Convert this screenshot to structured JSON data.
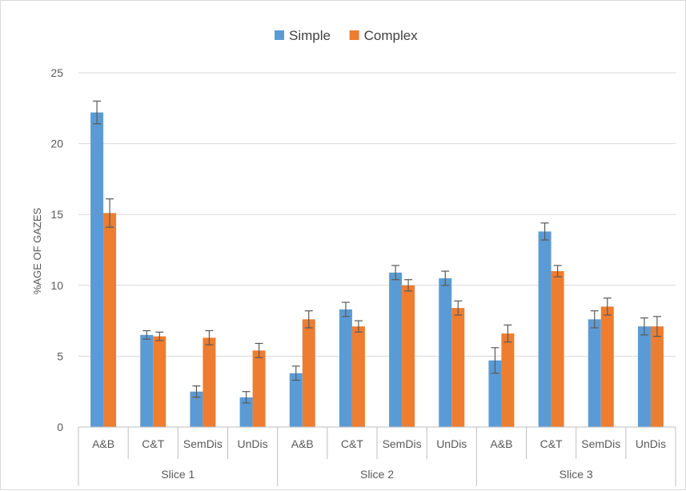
{
  "chart_data": {
    "type": "bar",
    "title": "",
    "ylabel": "%AGE OF GAZES",
    "xlabel": "",
    "ylim": [
      0,
      25
    ],
    "yticks": [
      0,
      5,
      10,
      15,
      20,
      25
    ],
    "grid": true,
    "legend_position": "top",
    "colors": {
      "Simple": "#5b9bd5",
      "Complex": "#ed7d31",
      "error_bar": "#595959"
    },
    "groups": [
      {
        "label": "Slice 1",
        "categories": [
          "A&B",
          "C&T",
          "SemDis",
          "UnDis"
        ]
      },
      {
        "label": "Slice 2",
        "categories": [
          "A&B",
          "C&T",
          "SemDis",
          "UnDis"
        ]
      },
      {
        "label": "Slice 3",
        "categories": [
          "A&B",
          "C&T",
          "SemDis",
          "UnDis"
        ]
      }
    ],
    "series": [
      {
        "name": "Simple",
        "values": [
          22.2,
          6.5,
          2.5,
          2.1,
          3.8,
          8.3,
          10.9,
          10.5,
          4.7,
          13.8,
          7.6,
          7.1
        ],
        "errors": [
          0.8,
          0.3,
          0.4,
          0.4,
          0.5,
          0.5,
          0.5,
          0.5,
          0.9,
          0.6,
          0.6,
          0.6
        ]
      },
      {
        "name": "Complex",
        "values": [
          15.1,
          6.4,
          6.3,
          5.4,
          7.6,
          7.1,
          10.0,
          8.4,
          6.6,
          11.0,
          8.5,
          7.1
        ],
        "errors": [
          1.0,
          0.3,
          0.5,
          0.5,
          0.6,
          0.4,
          0.4,
          0.5,
          0.6,
          0.4,
          0.6,
          0.7
        ]
      }
    ]
  }
}
